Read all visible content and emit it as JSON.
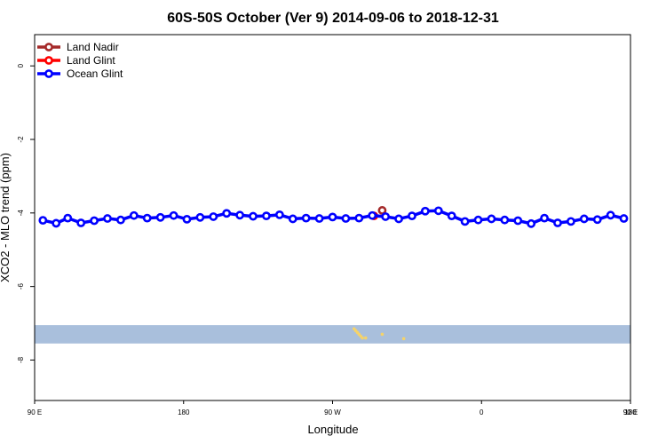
{
  "chart_data": {
    "type": "line",
    "title": "60S-50S October (Ver 9)   2014-09-06 to 2018-12-31",
    "xlabel": "Longitude",
    "ylabel": "XCO2 - MLO trend (ppm)",
    "xlim": [
      90,
      450
    ],
    "ylim": [
      -9.1,
      0.85
    ],
    "xticks": [
      {
        "value": 90,
        "label": "90 E"
      },
      {
        "value": 180,
        "label": "180"
      },
      {
        "value": 270,
        "label": "90 W"
      },
      {
        "value": 360,
        "label": "0"
      },
      {
        "value": 450,
        "label": "90 E"
      },
      {
        "value": 540,
        "label": "180"
      }
    ],
    "yticks": [
      {
        "value": 0,
        "label": "0"
      },
      {
        "value": -2,
        "label": "-2"
      },
      {
        "value": -4,
        "label": "-4"
      },
      {
        "value": -6,
        "label": "-6"
      },
      {
        "value": -8,
        "label": "-8"
      }
    ],
    "x_axis_end_label": "180",
    "legend_position": "top-left",
    "series": [
      {
        "name": "Land Nadir",
        "color": "#a52a2a",
        "points": [
          [
            300,
            -3.93
          ]
        ]
      },
      {
        "name": "Land Glint",
        "color": "#ff0000",
        "points": [
          [
            295,
            -4.08
          ]
        ]
      },
      {
        "name": "Ocean Glint",
        "color": "#0000ff",
        "points": [
          [
            95,
            -4.2
          ],
          [
            103,
            -4.28
          ],
          [
            110,
            -4.14
          ],
          [
            118,
            -4.27
          ],
          [
            126,
            -4.21
          ],
          [
            134,
            -4.15
          ],
          [
            142,
            -4.19
          ],
          [
            150,
            -4.07
          ],
          [
            158,
            -4.14
          ],
          [
            166,
            -4.12
          ],
          [
            174,
            -4.07
          ],
          [
            182,
            -4.17
          ],
          [
            190,
            -4.12
          ],
          [
            198,
            -4.1
          ],
          [
            206,
            -4.01
          ],
          [
            214,
            -4.06
          ],
          [
            222,
            -4.09
          ],
          [
            230,
            -4.08
          ],
          [
            238,
            -4.05
          ],
          [
            246,
            -4.16
          ],
          [
            254,
            -4.14
          ],
          [
            262,
            -4.15
          ],
          [
            270,
            -4.11
          ],
          [
            278,
            -4.15
          ],
          [
            286,
            -4.14
          ],
          [
            294,
            -4.07
          ],
          [
            302,
            -4.1
          ],
          [
            310,
            -4.16
          ],
          [
            318,
            -4.08
          ],
          [
            326,
            -3.95
          ],
          [
            334,
            -3.94
          ],
          [
            342,
            -4.08
          ],
          [
            350,
            -4.23
          ],
          [
            358,
            -4.19
          ],
          [
            366,
            -4.16
          ],
          [
            374,
            -4.19
          ],
          [
            382,
            -4.21
          ],
          [
            390,
            -4.29
          ],
          [
            398,
            -4.14
          ],
          [
            406,
            -4.27
          ],
          [
            414,
            -4.23
          ],
          [
            422,
            -4.16
          ],
          [
            430,
            -4.18
          ],
          [
            438,
            -4.06
          ],
          [
            446,
            -4.15
          ]
        ]
      }
    ],
    "map_band": {
      "y_top": -7.05,
      "y_bottom": -7.55,
      "ocean_color": "#a9bfdc",
      "land_color": "#f5d36a",
      "land_patches": [
        {
          "x": 284,
          "y": -7.2
        },
        {
          "x": 285,
          "y": -7.25
        },
        {
          "x": 286,
          "y": -7.3
        },
        {
          "x": 287,
          "y": -7.35
        },
        {
          "x": 288,
          "y": -7.4
        },
        {
          "x": 283,
          "y": -7.15
        },
        {
          "x": 290,
          "y": -7.4
        },
        {
          "x": 300,
          "y": -7.3
        },
        {
          "x": 313,
          "y": -7.42
        }
      ]
    }
  }
}
